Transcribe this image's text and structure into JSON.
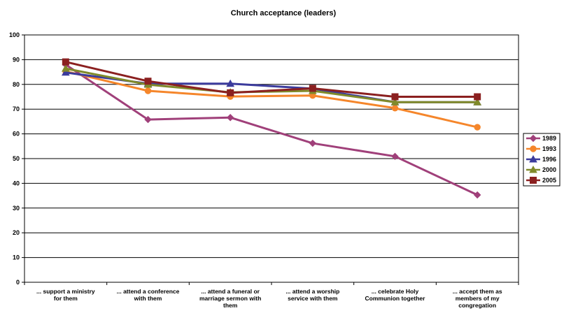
{
  "chart_data": {
    "type": "line",
    "title": "Church acceptance (leaders)",
    "xlabel": "",
    "ylabel": "",
    "ylim": [
      0,
      100
    ],
    "yticks": [
      "0",
      "10",
      "20",
      "30",
      "40",
      "50",
      "60",
      "70",
      "80",
      "90",
      "100"
    ],
    "grid": "horizontal",
    "legend_position": "right",
    "categories": [
      [
        "... support a ministry",
        "for them"
      ],
      [
        "... attend a conference",
        "with them"
      ],
      [
        "... attend a funeral or",
        "marriage sermon with",
        "them"
      ],
      [
        "... attend a worship",
        "service with them"
      ],
      [
        "... celebrate Holy",
        "Communion together"
      ],
      [
        "... accept them as",
        "members of my",
        "congregation"
      ]
    ],
    "series": [
      {
        "name": "1989",
        "color": "#a0407a",
        "marker": "diamond",
        "values": [
          88,
          65.8,
          66.6,
          56.2,
          50.9,
          35.3
        ]
      },
      {
        "name": "1993",
        "color": "#f5862b",
        "marker": "circle",
        "values": [
          85.3,
          77.4,
          75.1,
          75.5,
          70.4,
          62.7
        ]
      },
      {
        "name": "1996",
        "color": "#3b3b9c",
        "marker": "triangle",
        "values": [
          84.8,
          80.3,
          80.3,
          78.3,
          72.8,
          72.8
        ]
      },
      {
        "name": "2000",
        "color": "#808a2a",
        "marker": "triangle",
        "values": [
          86.4,
          79.9,
          76.8,
          77.4,
          72.8,
          72.8
        ]
      },
      {
        "name": "2005",
        "color": "#8b2020",
        "marker": "square",
        "values": [
          89.1,
          81.3,
          76.6,
          78.4,
          75,
          75
        ]
      }
    ]
  }
}
